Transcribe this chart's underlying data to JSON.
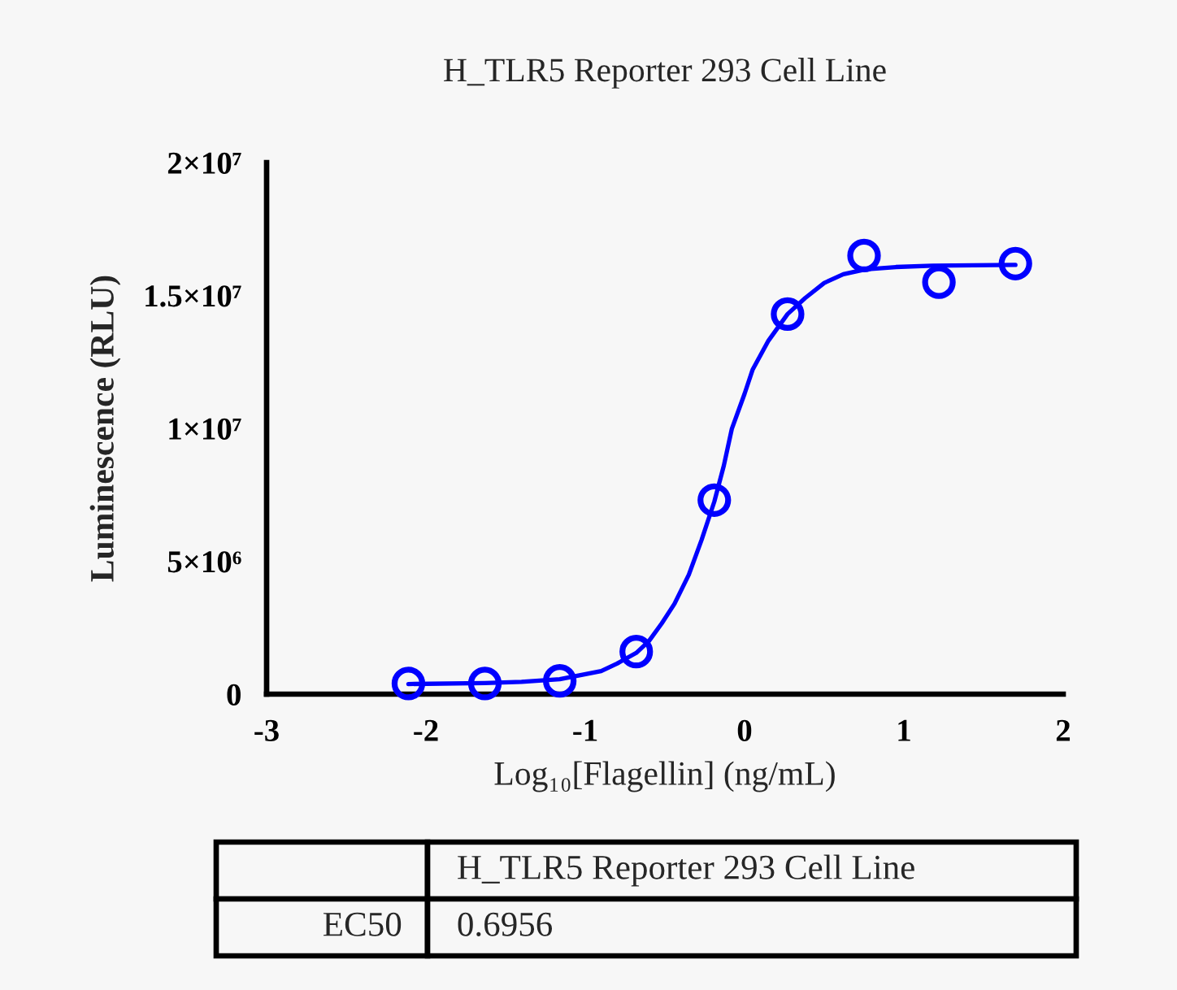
{
  "chart_data": {
    "type": "scatter",
    "title": "H_TLR5 Reporter 293 Cell Line",
    "xlabel": "Log₁₀[Flagellin] (ng/mL)",
    "ylabel": "Luminescence (RLU)",
    "xlim": [
      -3,
      2
    ],
    "xticks": [
      -3,
      -2,
      -1,
      0,
      1,
      2
    ],
    "ylim": [
      0,
      20000000
    ],
    "yticks": [
      0,
      {
        "value": 5000000,
        "label": "5×10⁶"
      },
      {
        "value": 10000000,
        "label": "1×10⁷"
      },
      {
        "value": 15000000,
        "label": "1.5×10⁷"
      },
      {
        "value": 20000000,
        "label": "2×10⁷"
      }
    ],
    "series": [
      {
        "type": "line",
        "color": "#0000ff",
        "marker": "none",
        "line_style": "solid",
        "x": [
          -2.11,
          -1.63,
          -1.4,
          -1.16,
          -0.9,
          -0.8,
          -0.68,
          -0.6,
          -0.52,
          -0.44,
          -0.35,
          -0.27,
          -0.19,
          -0.13,
          -0.08,
          0.0,
          0.05,
          0.15,
          0.27,
          0.38,
          0.5,
          0.62,
          0.76,
          0.95,
          1.18,
          1.7
        ],
        "values": [
          380000,
          420000,
          460000,
          560000,
          870000,
          1150000,
          1550000,
          2000000,
          2660000,
          3400000,
          4490000,
          5800000,
          7240000,
          8600000,
          9980000,
          11300000,
          12200000,
          13300000,
          14300000,
          14900000,
          15470000,
          15800000,
          15980000,
          16070000,
          16120000,
          16150000
        ]
      },
      {
        "color": "#0000ff",
        "marker": "circle",
        "x": [
          -2.11,
          -1.63,
          -1.16,
          -0.68,
          -0.19,
          0.27,
          0.75,
          1.22,
          1.7
        ],
        "values": [
          400000,
          400000,
          500000,
          1600000,
          7300000,
          14300000,
          16500000,
          15500000,
          16200000
        ]
      }
    ],
    "annotations": [
      "H_TLR5 Reporter 293 Cell Line",
      "EC50",
      "0.6956"
    ]
  }
}
